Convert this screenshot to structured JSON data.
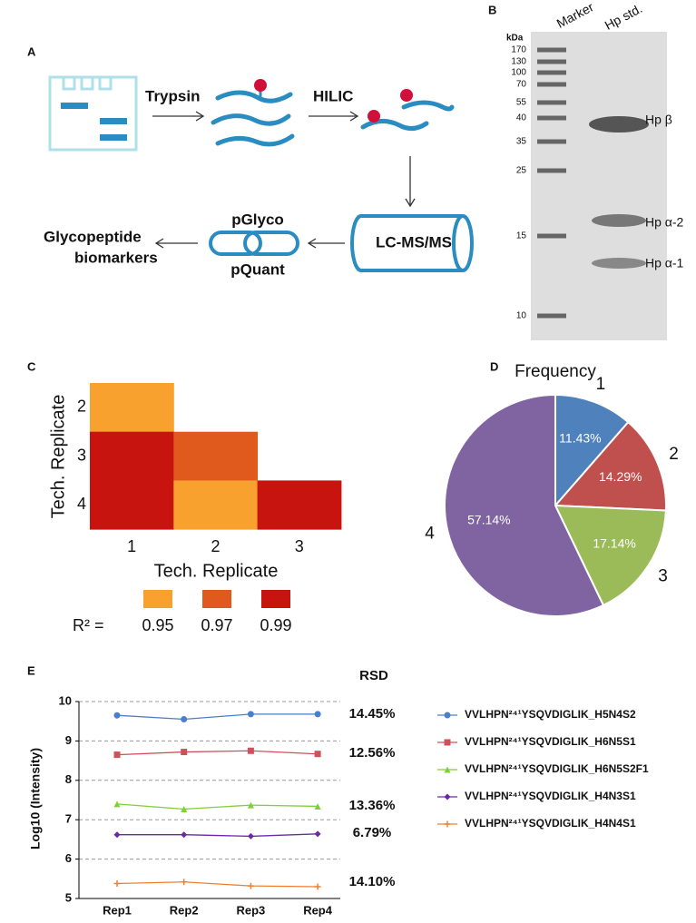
{
  "panel_a": {
    "label": "A",
    "step1": "Trypsin",
    "step2": "HILIC",
    "instrument": "LC-MS/MS",
    "software1": "pGlyco",
    "software2": "pQuant",
    "output_line1": "Glycopeptide",
    "output_line2": "biomarkers"
  },
  "panel_b": {
    "label": "B",
    "unit": "kDa",
    "lanes": [
      "Marker",
      "Hp std."
    ],
    "marker_kda": [
      170,
      130,
      100,
      70,
      55,
      40,
      35,
      25,
      15,
      10
    ],
    "bands": [
      "Hp β",
      "Hp α-2",
      "Hp α-1"
    ]
  },
  "chart_data": [
    {
      "type": "heatmap",
      "panel": "C",
      "x_categories": [
        "1",
        "2",
        "3"
      ],
      "y_categories": [
        "2",
        "3",
        "4"
      ],
      "values": [
        [
          0.95,
          null,
          null
        ],
        [
          0.99,
          0.97,
          null
        ],
        [
          0.99,
          0.95,
          0.99
        ]
      ],
      "xlabel": "Tech. Replicate",
      "ylabel": "Tech. Replicate",
      "legend_title": "R² =",
      "legend_values": [
        0.95,
        0.97,
        0.99
      ],
      "legend_colors": [
        "#f8a12e",
        "#e05a1e",
        "#c8140f"
      ]
    },
    {
      "type": "pie",
      "panel": "D",
      "title": "Frequency",
      "categories": [
        "1",
        "2",
        "3",
        "4"
      ],
      "values": [
        11.43,
        14.29,
        17.14,
        57.14
      ],
      "value_labels": [
        "11.43%",
        "14.29%",
        "17.14%",
        "57.14%"
      ],
      "colors": [
        "#4f81bd",
        "#c0504d",
        "#9bbb59",
        "#8064a2"
      ]
    },
    {
      "type": "line",
      "panel": "E",
      "categories": [
        "Rep1",
        "Rep2",
        "Rep3",
        "Rep4"
      ],
      "ylabel": "Log10 (Intensity)",
      "ylim": [
        5,
        10
      ],
      "yticks": [
        5,
        6,
        7,
        8,
        9,
        10
      ],
      "grid": true,
      "annotation_title": "RSD",
      "annotations": [
        "14.45%",
        "12.56%",
        "13.36%",
        "6.79%",
        "14.10%"
      ],
      "series": [
        {
          "name": "VVLHPN²⁴¹YSQVDIGLIK_H5N4S2",
          "color": "#4a7fc9",
          "marker": "circle",
          "values": [
            9.65,
            9.55,
            9.68,
            9.68
          ]
        },
        {
          "name": "VVLHPN²⁴¹YSQVDIGLIK_H6N5S1",
          "color": "#d0505a",
          "marker": "square",
          "values": [
            8.65,
            8.72,
            8.75,
            8.67
          ]
        },
        {
          "name": "VVLHPN²⁴¹YSQVDIGLIK_H6N5S2F1",
          "color": "#7fcf3a",
          "marker": "triangle",
          "values": [
            7.4,
            7.27,
            7.37,
            7.34
          ]
        },
        {
          "name": "VVLHPN²⁴¹YSQVDIGLIK_H4N3S1",
          "color": "#6a2aa8",
          "marker": "diamond",
          "values": [
            6.62,
            6.62,
            6.58,
            6.64
          ]
        },
        {
          "name": "VVLHPN²⁴¹YSQVDIGLIK_H4N4S1",
          "color": "#f08030",
          "marker": "plus",
          "values": [
            5.38,
            5.42,
            5.32,
            5.3
          ]
        }
      ]
    }
  ]
}
